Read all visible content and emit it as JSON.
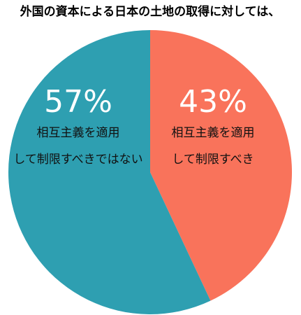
{
  "chart_data": {
    "type": "pie",
    "title": "外国の資本による日本の土地の取得に対しては、",
    "categories": [
      [
        "相互主義を適用",
        "して制限すべき"
      ],
      [
        "相互主義を適用",
        "して制限すべきではない"
      ]
    ],
    "values": [
      43,
      57
    ],
    "value_labels": [
      "43%",
      "57%"
    ],
    "colors": [
      "#f9735b",
      "#2e9fb1"
    ]
  }
}
